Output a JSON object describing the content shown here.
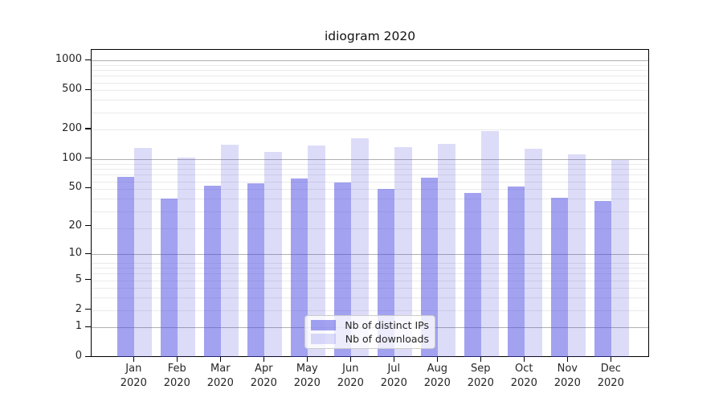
{
  "figure": {
    "background": "#ffffff"
  },
  "chart_data": {
    "type": "bar",
    "title": "idiogram 2020",
    "categories": [
      {
        "month": "Jan",
        "year": "2020"
      },
      {
        "month": "Feb",
        "year": "2020"
      },
      {
        "month": "Mar",
        "year": "2020"
      },
      {
        "month": "Apr",
        "year": "2020"
      },
      {
        "month": "May",
        "year": "2020"
      },
      {
        "month": "Jun",
        "year": "2020"
      },
      {
        "month": "Jul",
        "year": "2020"
      },
      {
        "month": "Aug",
        "year": "2020"
      },
      {
        "month": "Sep",
        "year": "2020"
      },
      {
        "month": "Oct",
        "year": "2020"
      },
      {
        "month": "Nov",
        "year": "2020"
      },
      {
        "month": "Dec",
        "year": "2020"
      }
    ],
    "series": [
      {
        "name": "Nb of distinct IPs",
        "color": "rgba(70,70,225,0.5)",
        "values": [
          66,
          39,
          53,
          56,
          63,
          57,
          49,
          64,
          45,
          52,
          40,
          37
        ]
      },
      {
        "name": "Nb of downloads",
        "color": "rgba(70,70,225,0.19)",
        "values": [
          130,
          104,
          140,
          118,
          138,
          162,
          133,
          143,
          193,
          127,
          111,
          97
        ]
      }
    ],
    "xlabel": "",
    "ylabel": "",
    "yscale": "log1p",
    "yticks": [
      0,
      1,
      2,
      5,
      10,
      20,
      50,
      100,
      200,
      500,
      1000
    ],
    "grid_major_at": [
      1,
      10,
      100,
      1000
    ],
    "ylim": [
      0,
      1270
    ],
    "grid": true,
    "legend_position": "lower center"
  },
  "colors": {
    "grid_minor": "#eaeaea",
    "grid_major": "#b0b0b0",
    "axis": "#000000",
    "text": "#262626"
  }
}
